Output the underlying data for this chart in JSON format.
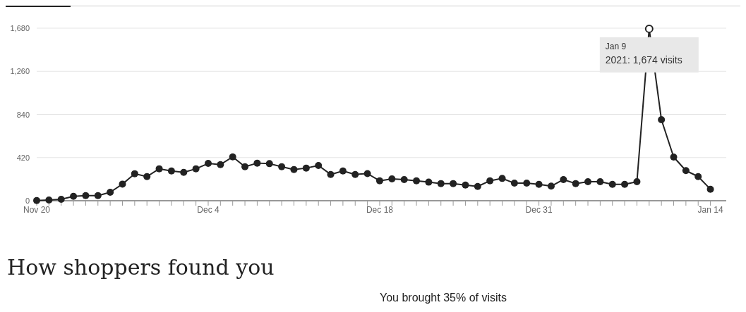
{
  "chart_data": {
    "type": "line",
    "marker": "circle",
    "grid": "y",
    "x": [
      "2020-11-20",
      "2020-11-21",
      "2020-11-22",
      "2020-11-23",
      "2020-11-24",
      "2020-11-25",
      "2020-11-26",
      "2020-11-27",
      "2020-11-28",
      "2020-11-29",
      "2020-11-30",
      "2020-12-01",
      "2020-12-02",
      "2020-12-03",
      "2020-12-04",
      "2020-12-05",
      "2020-12-06",
      "2020-12-07",
      "2020-12-08",
      "2020-12-09",
      "2020-12-10",
      "2020-12-11",
      "2020-12-12",
      "2020-12-13",
      "2020-12-14",
      "2020-12-15",
      "2020-12-16",
      "2020-12-17",
      "2020-12-18",
      "2020-12-19",
      "2020-12-20",
      "2020-12-21",
      "2020-12-22",
      "2020-12-23",
      "2020-12-24",
      "2020-12-25",
      "2020-12-26",
      "2020-12-27",
      "2020-12-28",
      "2020-12-29",
      "2020-12-30",
      "2020-12-31",
      "2021-01-01",
      "2021-01-02",
      "2021-01-03",
      "2021-01-04",
      "2021-01-05",
      "2021-01-06",
      "2021-01-07",
      "2021-01-08",
      "2021-01-09",
      "2021-01-10",
      "2021-01-11",
      "2021-01-12",
      "2021-01-13",
      "2021-01-14"
    ],
    "series": [
      {
        "color": "#222222",
        "values": [
          2,
          7,
          14,
          43,
          50,
          50,
          82,
          162,
          263,
          235,
          311,
          290,
          276,
          311,
          363,
          352,
          427,
          331,
          366,
          361,
          331,
          304,
          318,
          343,
          256,
          290,
          256,
          264,
          194,
          213,
          206,
          194,
          181,
          167,
          167,
          153,
          139,
          194,
          217,
          171,
          171,
          160,
          142,
          206,
          167,
          185,
          185,
          160,
          160,
          185,
          1674,
          789,
          425,
          293,
          235,
          112
        ]
      }
    ],
    "xlim": [
      "2020-11-20",
      "2021-01-15T07:00"
    ],
    "xticks": [
      {
        "value": "2020-11-20",
        "label": "Nov 20"
      },
      {
        "value": "2020-11-21",
        "label": null
      },
      {
        "value": "2020-11-22",
        "label": null
      },
      {
        "value": "2020-11-23",
        "label": null
      },
      {
        "value": "2020-11-24",
        "label": null
      },
      {
        "value": "2020-11-25",
        "label": null
      },
      {
        "value": "2020-11-26",
        "label": null
      },
      {
        "value": "2020-11-27",
        "label": null
      },
      {
        "value": "2020-11-28",
        "label": null
      },
      {
        "value": "2020-11-29",
        "label": null
      },
      {
        "value": "2020-11-30",
        "label": null
      },
      {
        "value": "2020-12-01",
        "label": null
      },
      {
        "value": "2020-12-02",
        "label": null
      },
      {
        "value": "2020-12-03",
        "label": null
      },
      {
        "value": "2020-12-04",
        "label": "Dec 4"
      },
      {
        "value": "2020-12-05",
        "label": null
      },
      {
        "value": "2020-12-06",
        "label": null
      },
      {
        "value": "2020-12-07",
        "label": null
      },
      {
        "value": "2020-12-08",
        "label": null
      },
      {
        "value": "2020-12-09",
        "label": null
      },
      {
        "value": "2020-12-10",
        "label": null
      },
      {
        "value": "2020-12-11",
        "label": null
      },
      {
        "value": "2020-12-12",
        "label": null
      },
      {
        "value": "2020-12-13",
        "label": null
      },
      {
        "value": "2020-12-14",
        "label": null
      },
      {
        "value": "2020-12-15",
        "label": null
      },
      {
        "value": "2020-12-16",
        "label": null
      },
      {
        "value": "2020-12-17",
        "label": null
      },
      {
        "value": "2020-12-18",
        "label": "Dec 18"
      },
      {
        "value": "2020-12-19",
        "label": null
      },
      {
        "value": "2020-12-20",
        "label": null
      },
      {
        "value": "2020-12-21",
        "label": null
      },
      {
        "value": "2020-12-22",
        "label": null
      },
      {
        "value": "2020-12-23",
        "label": null
      },
      {
        "value": "2020-12-24",
        "label": null
      },
      {
        "value": "2020-12-25",
        "label": null
      },
      {
        "value": "2020-12-26",
        "label": null
      },
      {
        "value": "2020-12-27",
        "label": null
      },
      {
        "value": "2020-12-28",
        "label": null
      },
      {
        "value": "2020-12-29",
        "label": null
      },
      {
        "value": "2020-12-30",
        "label": null
      },
      {
        "value": "2020-12-31",
        "label": "Dec 31"
      },
      {
        "value": "2021-01-01",
        "label": null
      },
      {
        "value": "2021-01-02",
        "label": null
      },
      {
        "value": "2021-01-03",
        "label": null
      },
      {
        "value": "2021-01-04",
        "label": null
      },
      {
        "value": "2021-01-05",
        "label": null
      },
      {
        "value": "2021-01-06",
        "label": null
      },
      {
        "value": "2021-01-07",
        "label": null
      },
      {
        "value": "2021-01-08",
        "label": null
      },
      {
        "value": "2021-01-09",
        "label": null
      },
      {
        "value": "2021-01-10",
        "label": null
      },
      {
        "value": "2021-01-11",
        "label": null
      },
      {
        "value": "2021-01-12",
        "label": null
      },
      {
        "value": "2021-01-13",
        "label": null
      },
      {
        "value": "2021-01-14",
        "label": "Jan 14"
      }
    ],
    "ylim": [
      0,
      1680
    ],
    "yticks": [
      0,
      420,
      840,
      {
        "value": 1260,
        "label": "1,260"
      },
      {
        "value": 1680,
        "label": "1,680"
      }
    ],
    "annotations": [
      {
        "text": "Jan 9\n2021: 1,674 visits",
        "x": "2021-01-09",
        "y": 1674
      },
      "How shoppers found you",
      "You brought 35% of visits"
    ]
  }
}
